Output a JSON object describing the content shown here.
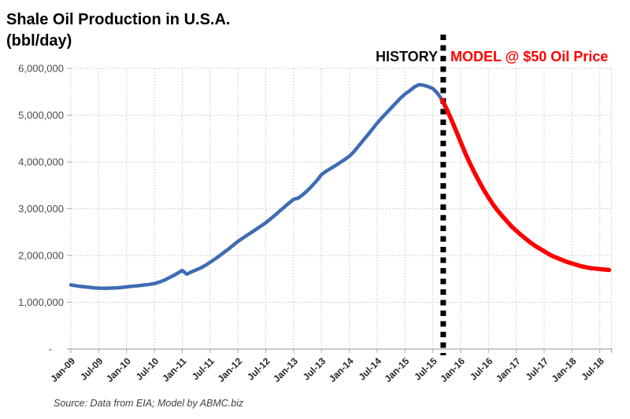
{
  "page": {
    "title_line1": "Shale Oil Production in U.S.A.",
    "title_line2": "(bbl/day)",
    "history_label": "HISTORY",
    "model_label": "MODEL @ $50 Oil Price",
    "source_note": "Source:  Data from EIA; Model by ABMC.biz"
  },
  "chart_data": {
    "type": "line",
    "title": "Shale Oil Production in U.S.A. (bbl/day)",
    "xlabel": "",
    "ylabel": "bbl/day",
    "ylim": [
      0,
      6000000
    ],
    "xlim_months": [
      0,
      116.5
    ],
    "grid": true,
    "legend_position": "none",
    "y_tick_values": [
      0,
      1000000,
      2000000,
      3000000,
      4000000,
      5000000,
      6000000
    ],
    "y_tick_labels": [
      "-",
      "1,000,000",
      "2,000,000",
      "3,000,000",
      "4,000,000",
      "5,000,000",
      "6,000,000"
    ],
    "x_tick_month_index": [
      0,
      6,
      12,
      18,
      24,
      30,
      36,
      42,
      48,
      54,
      60,
      66,
      72,
      78,
      84,
      90,
      96,
      102,
      108,
      114
    ],
    "x_tick_labels": [
      "Jan-09",
      "Jul-09",
      "Jan-10",
      "Jul-10",
      "Jan-11",
      "Jul-11",
      "Jan-12",
      "Jul-12",
      "Jan-13",
      "Jul-13",
      "Jan-14",
      "Jul-14",
      "Jan-15",
      "Jul-15",
      "Jan-16",
      "Jul-16",
      "Jan-17",
      "Jul-17",
      "Jan-18",
      "Jul-18"
    ],
    "divider_month_index": 80,
    "divider_color": "#000000",
    "series": [
      {
        "name": "HISTORY",
        "color": "#3f6cb4",
        "stroke_width": 4.5,
        "start_month_index": 0,
        "values": [
          1370000,
          1355000,
          1340000,
          1330000,
          1320000,
          1310000,
          1300000,
          1298000,
          1300000,
          1305000,
          1310000,
          1318000,
          1330000,
          1340000,
          1350000,
          1360000,
          1372000,
          1384000,
          1400000,
          1428000,
          1465000,
          1515000,
          1565000,
          1620000,
          1680000,
          1600000,
          1650000,
          1692000,
          1735000,
          1790000,
          1855000,
          1920000,
          1990000,
          2065000,
          2140000,
          2220000,
          2300000,
          2368000,
          2435000,
          2500000,
          2565000,
          2632000,
          2700000,
          2780000,
          2860000,
          2950000,
          3035000,
          3120000,
          3200000,
          3225000,
          3300000,
          3390000,
          3490000,
          3600000,
          3730000,
          3800000,
          3860000,
          3920000,
          3985000,
          4050000,
          4120000,
          4220000,
          4340000,
          4460000,
          4580000,
          4705000,
          4830000,
          4940000,
          5045000,
          5150000,
          5255000,
          5360000,
          5450000,
          5520000,
          5600000,
          5650000,
          5640000,
          5610000,
          5570000,
          5470000,
          5330000
        ]
      },
      {
        "name": "MODEL @ $50 Oil Price",
        "color": "#ff0000",
        "stroke_width": 5.5,
        "start_month_index": 80,
        "values": [
          5330000,
          5130000,
          4910000,
          4670000,
          4430000,
          4190000,
          3970000,
          3770000,
          3580000,
          3400000,
          3240000,
          3090000,
          2960000,
          2840000,
          2730000,
          2620000,
          2530000,
          2440000,
          2360000,
          2280000,
          2210000,
          2150000,
          2090000,
          2030000,
          1980000,
          1940000,
          1900000,
          1860000,
          1830000,
          1800000,
          1770000,
          1750000,
          1730000,
          1720000,
          1710000,
          1700000,
          1690000
        ]
      }
    ]
  }
}
